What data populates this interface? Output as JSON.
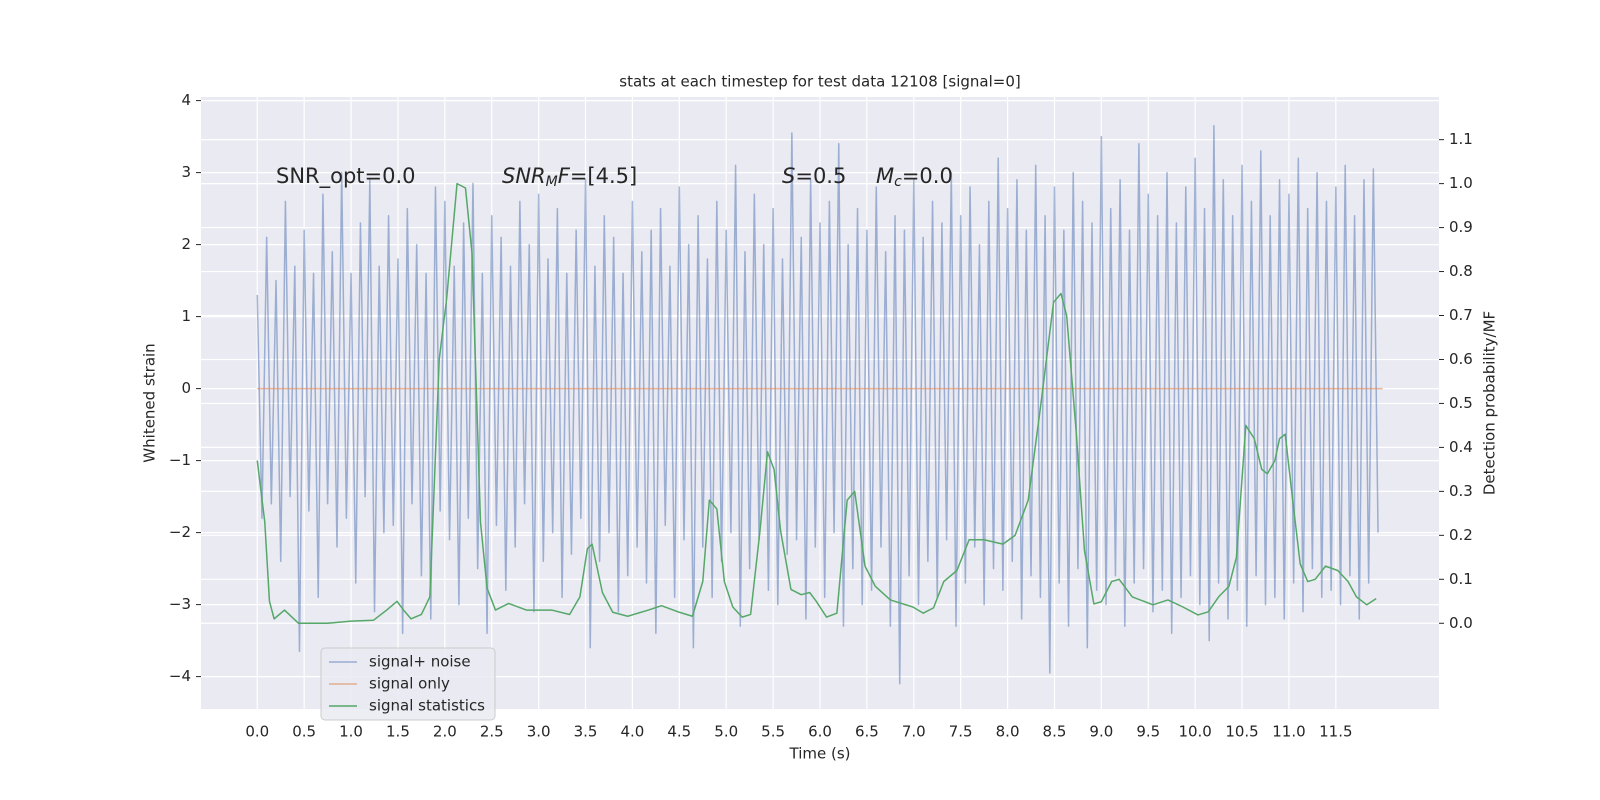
{
  "chart_data": {
    "type": "line",
    "title": "stats at each timestep for test data 12108 [signal=0]",
    "xlabel": "Time (s)",
    "ylabel": "Whitened strain",
    "y2label": "Detection probability/MF",
    "xlim": [
      -0.6,
      12.6
    ],
    "ylim": [
      -4.45,
      4.05
    ],
    "y2lim": [
      -0.195,
      1.197
    ],
    "xticks": [
      {
        "value": 0,
        "label": "0.0"
      },
      0.5,
      {
        "value": 1,
        "label": "1.0"
      },
      1.5,
      {
        "value": 2,
        "label": "2.0"
      },
      2.5,
      {
        "value": 3,
        "label": "3.0"
      },
      3.5,
      {
        "value": 4,
        "label": "4.0"
      },
      4.5,
      {
        "value": 5,
        "label": "5.0"
      },
      5.5,
      {
        "value": 6,
        "label": "6.0"
      },
      6.5,
      {
        "value": 7,
        "label": "7.0"
      },
      7.5,
      {
        "value": 8,
        "label": "8.0"
      },
      8.5,
      {
        "value": 9,
        "label": "9.0"
      },
      9.5,
      {
        "value": 10,
        "label": "10.0"
      },
      10.5,
      {
        "value": 11,
        "label": "11.0"
      },
      11.5
    ],
    "yticks": [
      {
        "value": -4,
        "label": "−4"
      },
      {
        "value": -3,
        "label": "−3"
      },
      {
        "value": -2,
        "label": "−2"
      },
      {
        "value": -1,
        "label": "−1"
      },
      0,
      1,
      2,
      3,
      4
    ],
    "y2ticks": [
      {
        "value": 0,
        "label": "0.0"
      },
      0.1,
      0.2,
      0.3,
      0.4,
      0.5,
      0.6,
      0.7,
      0.8,
      0.9,
      {
        "value": 1,
        "label": "1.0"
      },
      1.1
    ],
    "grid": true,
    "legend": "lower left",
    "annotations": [
      [
        {
          "text": "SNR_opt=0.0"
        }
      ],
      [
        {
          "text": "SNR",
          "italic": true
        },
        {
          "text": "M",
          "italic": true,
          "sub": true
        },
        {
          "text": "F",
          "italic": true
        },
        {
          "text": "=[4.5]"
        }
      ],
      [
        {
          "text": "S",
          "italic": true
        },
        {
          "text": "=0.5"
        }
      ],
      [
        {
          "text": "M",
          "italic": true
        },
        {
          "text": "c",
          "italic": true,
          "sub": true
        },
        {
          "text": "=0.0"
        }
      ]
    ],
    "series": [
      {
        "name": "signal+ noise",
        "color": "#4c72b0",
        "opacity": 0.5,
        "x": [
          0,
          0.05,
          0.1,
          0.15,
          0.2,
          0.25,
          0.3,
          0.35,
          0.4,
          0.45,
          0.5,
          0.55,
          0.6,
          0.65,
          0.7,
          0.75,
          0.8,
          0.85,
          0.9,
          0.95,
          1,
          1.05,
          1.1,
          1.15,
          1.2,
          1.25,
          1.3,
          1.35,
          1.4,
          1.45,
          1.5,
          1.55,
          1.6,
          1.65,
          1.7,
          1.75,
          1.8,
          1.85,
          1.9,
          1.95,
          2,
          2.05,
          2.1,
          2.15,
          2.2,
          2.25,
          2.3,
          2.35,
          2.4,
          2.45,
          2.5,
          2.55,
          2.6,
          2.65,
          2.7,
          2.75,
          2.8,
          2.85,
          2.9,
          2.95,
          3,
          3.05,
          3.1,
          3.15,
          3.2,
          3.25,
          3.3,
          3.35,
          3.4,
          3.45,
          3.5,
          3.55,
          3.6,
          3.65,
          3.7,
          3.75,
          3.8,
          3.85,
          3.9,
          3.95,
          4,
          4.05,
          4.1,
          4.15,
          4.2,
          4.25,
          4.3,
          4.35,
          4.4,
          4.45,
          4.5,
          4.55,
          4.6,
          4.65,
          4.7,
          4.75,
          4.8,
          4.85,
          4.9,
          4.95,
          5,
          5.05,
          5.1,
          5.15,
          5.2,
          5.25,
          5.3,
          5.35,
          5.4,
          5.45,
          5.5,
          5.55,
          5.6,
          5.65,
          5.7,
          5.75,
          5.8,
          5.85,
          5.9,
          5.95,
          6,
          6.05,
          6.1,
          6.15,
          6.2,
          6.25,
          6.3,
          6.35,
          6.4,
          6.45,
          6.5,
          6.55,
          6.6,
          6.65,
          6.7,
          6.75,
          6.8,
          6.85,
          6.9,
          6.95,
          7,
          7.05,
          7.1,
          7.15,
          7.2,
          7.25,
          7.3,
          7.35,
          7.4,
          7.45,
          7.5,
          7.55,
          7.6,
          7.65,
          7.7,
          7.75,
          7.8,
          7.85,
          7.9,
          7.95,
          8,
          8.05,
          8.1,
          8.15,
          8.2,
          8.25,
          8.3,
          8.35,
          8.4,
          8.45,
          8.5,
          8.55,
          8.6,
          8.65,
          8.7,
          8.75,
          8.8,
          8.85,
          8.9,
          8.95,
          9,
          9.05,
          9.1,
          9.15,
          9.2,
          9.25,
          9.3,
          9.35,
          9.4,
          9.45,
          9.5,
          9.55,
          9.6,
          9.65,
          9.7,
          9.75,
          9.8,
          9.85,
          9.9,
          9.95,
          10,
          10.05,
          10.1,
          10.15,
          10.2,
          10.25,
          10.3,
          10.35,
          10.4,
          10.45,
          10.5,
          10.55,
          10.6,
          10.65,
          10.7,
          10.75,
          10.8,
          10.85,
          10.9,
          10.95,
          11,
          11.05,
          11.1,
          11.15,
          11.2,
          11.25,
          11.3,
          11.35,
          11.4,
          11.45,
          11.5,
          11.55,
          11.6,
          11.65,
          11.7,
          11.75,
          11.8,
          11.85,
          11.9,
          11.95
        ],
        "values": [
          1.3,
          -1.8,
          2.1,
          -1.6,
          1.5,
          -2.4,
          2.6,
          -1.5,
          1.7,
          -3.65,
          2.2,
          -1.7,
          1.6,
          -2.9,
          2.7,
          -1.6,
          1.9,
          -2.2,
          3.0,
          -1.8,
          1.6,
          -2.7,
          2.3,
          -1.5,
          2.9,
          -3.1,
          1.7,
          -2.0,
          2.4,
          -1.9,
          1.8,
          -3.4,
          2.5,
          -1.6,
          2.0,
          -2.6,
          1.6,
          -3.2,
          2.8,
          -1.7,
          2.6,
          -2.1,
          1.7,
          -3.0,
          2.3,
          -1.8,
          2.85,
          -2.5,
          1.6,
          -3.4,
          2.4,
          -1.9,
          2.1,
          -2.8,
          1.7,
          -2.2,
          2.6,
          -1.6,
          2.0,
          -3.1,
          2.7,
          -2.4,
          1.8,
          -2.0,
          2.5,
          -2.9,
          1.6,
          -2.3,
          2.2,
          -1.8,
          2.9,
          -3.6,
          1.7,
          -2.4,
          2.4,
          -2.0,
          2.1,
          -3.1,
          1.6,
          -2.6,
          2.6,
          -2.2,
          1.9,
          -2.7,
          2.2,
          -3.4,
          2.5,
          -1.9,
          1.7,
          -2.9,
          2.8,
          -2.1,
          2.0,
          -3.6,
          2.4,
          -2.2,
          1.8,
          -2.9,
          2.6,
          -2.4,
          2.2,
          -2.0,
          3.1,
          -3.3,
          1.9,
          -2.5,
          2.7,
          -2.1,
          2.0,
          -2.8,
          2.5,
          -3.0,
          1.8,
          -2.3,
          3.55,
          -2.1,
          2.1,
          -3.2,
          2.9,
          -2.2,
          2.3,
          -2.9,
          2.6,
          -2.0,
          3.4,
          -3.3,
          2.0,
          -2.5,
          2.5,
          -3.0,
          2.2,
          -2.8,
          2.8,
          -2.2,
          1.9,
          -3.3,
          2.4,
          -4.1,
          2.2,
          -2.6,
          2.9,
          -3.0,
          2.1,
          -2.4,
          2.6,
          -2.9,
          2.3,
          -2.1,
          3.0,
          -3.3,
          2.4,
          -2.7,
          2.8,
          -2.2,
          2.0,
          -3.0,
          2.6,
          -2.5,
          3.2,
          -2.8,
          2.5,
          -2.4,
          2.9,
          -3.2,
          2.2,
          -2.6,
          3.1,
          -2.9,
          2.4,
          -3.95,
          2.8,
          -2.7,
          2.2,
          -3.3,
          3.0,
          -2.5,
          2.6,
          -3.6,
          2.3,
          -2.8,
          3.5,
          -3.0,
          2.5,
          -2.6,
          2.9,
          -3.3,
          2.2,
          -2.7,
          3.4,
          -2.5,
          2.7,
          -3.1,
          2.4,
          -2.8,
          3.0,
          -3.4,
          2.3,
          -2.9,
          2.8,
          -2.6,
          3.2,
          -3.0,
          2.5,
          -3.5,
          3.65,
          -2.7,
          2.9,
          -3.2,
          2.4,
          -2.8,
          3.1,
          -3.3,
          2.6,
          -2.6,
          3.3,
          -3.0,
          2.4,
          -2.9,
          2.9,
          -3.2,
          2.7,
          -2.7,
          3.2,
          -3.1,
          2.5,
          -2.5,
          3.0,
          -2.9,
          2.6,
          -2.8,
          2.8,
          -3.0,
          3.1,
          -2.6,
          2.4,
          -3.2,
          2.9,
          -2.7,
          3.05,
          -2.0
        ]
      },
      {
        "name": "signal only",
        "color": "#dd8452",
        "opacity": 0.6,
        "x": [
          0,
          12
        ],
        "values": [
          0,
          0
        ]
      },
      {
        "name": "signal statistics",
        "color": "#55a868",
        "opacity": 1,
        "axis": "y2",
        "x": [
          0,
          0.08,
          0.13,
          0.18,
          0.29,
          0.44,
          0.75,
          1.0,
          1.24,
          1.38,
          1.49,
          1.56,
          1.64,
          1.75,
          1.84,
          1.94,
          2.02,
          2.13,
          2.22,
          2.29,
          2.38,
          2.45,
          2.54,
          2.68,
          2.87,
          3.14,
          3.33,
          3.44,
          3.52,
          3.57,
          3.68,
          3.79,
          3.95,
          4.17,
          4.31,
          4.5,
          4.64,
          4.75,
          4.82,
          4.9,
          4.98,
          5.07,
          5.17,
          5.26,
          5.36,
          5.44,
          5.51,
          5.58,
          5.69,
          5.8,
          5.89,
          5.96,
          6.07,
          6.18,
          6.29,
          6.37,
          6.48,
          6.59,
          6.75,
          6.99,
          7.1,
          7.21,
          7.32,
          7.46,
          7.59,
          7.75,
          7.95,
          8.08,
          8.22,
          8.35,
          8.49,
          8.57,
          8.63,
          8.73,
          8.82,
          8.92,
          9.0,
          9.11,
          9.19,
          9.33,
          9.55,
          9.71,
          9.87,
          10.03,
          10.14,
          10.25,
          10.36,
          10.44,
          10.54,
          10.63,
          10.71,
          10.77,
          10.85,
          10.9,
          10.96,
          11.04,
          11.12,
          11.2,
          11.28,
          11.39,
          11.52,
          11.63,
          11.72,
          11.83,
          11.93
        ],
        "values": [
          0.37,
          0.23,
          0.05,
          0.01,
          0.03,
          0.0,
          0.0,
          0.005,
          0.007,
          0.03,
          0.05,
          0.03,
          0.01,
          0.02,
          0.06,
          0.6,
          0.74,
          1.0,
          0.99,
          0.84,
          0.23,
          0.08,
          0.03,
          0.045,
          0.03,
          0.03,
          0.02,
          0.06,
          0.17,
          0.18,
          0.07,
          0.025,
          0.016,
          0.03,
          0.04,
          0.025,
          0.016,
          0.095,
          0.28,
          0.26,
          0.095,
          0.037,
          0.014,
          0.02,
          0.21,
          0.39,
          0.35,
          0.21,
          0.077,
          0.065,
          0.07,
          0.05,
          0.014,
          0.023,
          0.28,
          0.3,
          0.13,
          0.084,
          0.053,
          0.037,
          0.023,
          0.035,
          0.095,
          0.12,
          0.19,
          0.19,
          0.18,
          0.2,
          0.28,
          0.49,
          0.73,
          0.75,
          0.7,
          0.44,
          0.165,
          0.044,
          0.049,
          0.095,
          0.1,
          0.06,
          0.042,
          0.053,
          0.037,
          0.019,
          0.026,
          0.06,
          0.084,
          0.15,
          0.45,
          0.42,
          0.35,
          0.34,
          0.37,
          0.42,
          0.43,
          0.28,
          0.135,
          0.095,
          0.1,
          0.13,
          0.12,
          0.095,
          0.06,
          0.042,
          0.056
        ]
      }
    ]
  }
}
